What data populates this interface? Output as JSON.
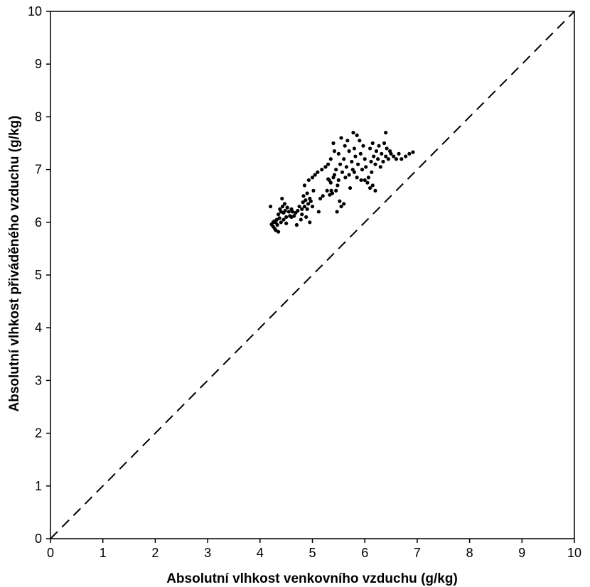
{
  "chart_data": {
    "type": "scatter",
    "title": "",
    "xlabel": "Absolutní vlhkost venkovního vzduchu (g/kg)",
    "ylabel": "Absolutní vlhkost přiváděného vzduchu (g/kg)",
    "xlim": [
      0,
      10
    ],
    "ylim": [
      0,
      10
    ],
    "xticks": [
      "0",
      "1",
      "2",
      "3",
      "4",
      "5",
      "6",
      "7",
      "8",
      "9",
      "10"
    ],
    "yticks": [
      "0",
      "1",
      "2",
      "3",
      "4",
      "5",
      "6",
      "7",
      "8",
      "9",
      "10"
    ],
    "grid": false,
    "legend": "none",
    "reference_line": {
      "style": "dashed",
      "from": [
        0,
        0
      ],
      "to": [
        10,
        10
      ]
    },
    "marker_color": "#000000",
    "points": [
      [
        4.2,
        6.3
      ],
      [
        4.22,
        5.96
      ],
      [
        4.25,
        5.92
      ],
      [
        4.27,
        6.02
      ],
      [
        4.28,
        5.88
      ],
      [
        4.3,
        6.0
      ],
      [
        4.3,
        5.85
      ],
      [
        4.32,
        6.05
      ],
      [
        4.33,
        5.95
      ],
      [
        4.35,
        6.15
      ],
      [
        4.35,
        5.82
      ],
      [
        4.37,
        6.08
      ],
      [
        4.38,
        6.25
      ],
      [
        4.4,
        6.2
      ],
      [
        4.4,
        6.0
      ],
      [
        4.42,
        6.45
      ],
      [
        4.43,
        6.3
      ],
      [
        4.45,
        6.18
      ],
      [
        4.45,
        6.05
      ],
      [
        4.47,
        6.35
      ],
      [
        4.48,
        6.22
      ],
      [
        4.5,
        6.1
      ],
      [
        4.5,
        5.98
      ],
      [
        4.52,
        6.28
      ],
      [
        4.55,
        6.2
      ],
      [
        4.57,
        6.12
      ],
      [
        4.6,
        6.1
      ],
      [
        4.62,
        6.2
      ],
      [
        4.65,
        6.12
      ],
      [
        4.68,
        6.18
      ],
      [
        4.7,
        5.95
      ],
      [
        4.72,
        6.22
      ],
      [
        4.75,
        6.3
      ],
      [
        4.78,
        6.05
      ],
      [
        4.8,
        6.25
      ],
      [
        4.8,
        6.15
      ],
      [
        4.82,
        6.38
      ],
      [
        4.83,
        6.5
      ],
      [
        4.85,
        6.3
      ],
      [
        4.85,
        6.7
      ],
      [
        4.87,
        6.42
      ],
      [
        4.88,
        6.1
      ],
      [
        4.9,
        6.25
      ],
      [
        4.9,
        6.55
      ],
      [
        4.92,
        6.35
      ],
      [
        4.93,
        6.8
      ],
      [
        4.95,
        6.45
      ],
      [
        4.95,
        6.0
      ],
      [
        4.97,
        6.4
      ],
      [
        5.0,
        6.85
      ],
      [
        5.0,
        6.3
      ],
      [
        5.02,
        6.6
      ],
      [
        5.05,
        6.9
      ],
      [
        5.1,
        6.95
      ],
      [
        5.12,
        6.2
      ],
      [
        5.15,
        6.45
      ],
      [
        5.18,
        7.0
      ],
      [
        5.2,
        6.5
      ],
      [
        5.25,
        7.05
      ],
      [
        5.28,
        6.6
      ],
      [
        5.3,
        7.1
      ],
      [
        5.32,
        6.8
      ],
      [
        5.35,
        6.75
      ],
      [
        5.35,
        7.2
      ],
      [
        5.38,
        6.55
      ],
      [
        5.4,
        6.85
      ],
      [
        5.4,
        7.5
      ],
      [
        5.42,
        7.35
      ],
      [
        5.42,
        6.9
      ],
      [
        5.45,
        6.6
      ],
      [
        5.45,
        7.0
      ],
      [
        5.47,
        6.2
      ],
      [
        5.48,
        6.7
      ],
      [
        5.5,
        7.3
      ],
      [
        5.5,
        6.8
      ],
      [
        5.52,
        6.4
      ],
      [
        5.53,
        7.1
      ],
      [
        5.55,
        6.3
      ],
      [
        5.55,
        7.6
      ],
      [
        5.57,
        6.95
      ],
      [
        5.6,
        7.2
      ],
      [
        5.6,
        6.35
      ],
      [
        5.62,
        7.45
      ],
      [
        5.63,
        6.85
      ],
      [
        5.65,
        7.05
      ],
      [
        5.67,
        7.55
      ],
      [
        5.7,
        6.9
      ],
      [
        5.7,
        7.35
      ],
      [
        5.72,
        6.65
      ],
      [
        5.75,
        7.15
      ],
      [
        5.77,
        7.0
      ],
      [
        5.78,
        7.7
      ],
      [
        5.8,
        6.95
      ],
      [
        5.8,
        7.4
      ],
      [
        5.82,
        7.25
      ],
      [
        5.85,
        7.65
      ],
      [
        5.85,
        6.85
      ],
      [
        5.87,
        7.1
      ],
      [
        5.9,
        7.55
      ],
      [
        5.92,
        7.3
      ],
      [
        5.93,
        6.8
      ],
      [
        5.95,
        7.0
      ],
      [
        5.97,
        7.45
      ],
      [
        6.0,
        6.8
      ],
      [
        6.0,
        7.2
      ],
      [
        6.02,
        7.05
      ],
      [
        6.05,
        6.75
      ],
      [
        6.07,
        6.85
      ],
      [
        6.1,
        7.4
      ],
      [
        6.1,
        6.65
      ],
      [
        6.12,
        7.15
      ],
      [
        6.13,
        6.95
      ],
      [
        6.15,
        7.5
      ],
      [
        6.15,
        6.7
      ],
      [
        6.17,
        7.25
      ],
      [
        6.2,
        7.1
      ],
      [
        6.2,
        6.6
      ],
      [
        6.22,
        7.35
      ],
      [
        6.25,
        7.2
      ],
      [
        6.27,
        7.45
      ],
      [
        6.3,
        7.05
      ],
      [
        6.32,
        7.3
      ],
      [
        6.35,
        7.15
      ],
      [
        6.37,
        7.5
      ],
      [
        6.4,
        7.25
      ],
      [
        6.4,
        7.7
      ],
      [
        6.42,
        7.4
      ],
      [
        6.45,
        7.2
      ],
      [
        6.48,
        7.35
      ],
      [
        6.5,
        7.3
      ],
      [
        6.55,
        7.25
      ],
      [
        6.6,
        7.2
      ],
      [
        6.65,
        7.3
      ],
      [
        6.7,
        7.2
      ],
      [
        6.78,
        7.25
      ],
      [
        6.85,
        7.3
      ],
      [
        6.92,
        7.33
      ],
      [
        4.6,
        6.25
      ],
      [
        4.25,
        6.0
      ],
      [
        5.3,
        6.82
      ],
      [
        5.36,
        6.6
      ],
      [
        5.33,
        6.52
      ]
    ]
  }
}
